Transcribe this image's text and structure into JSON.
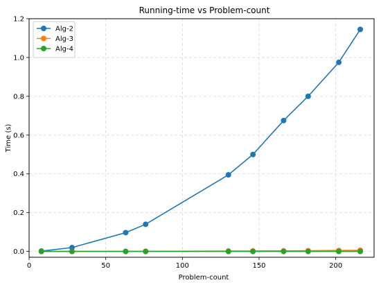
{
  "chart_data": {
    "type": "line",
    "title": "Running-time vs Problem-count",
    "xlabel": "Problem-count",
    "ylabel": "Time (s)",
    "xlim": [
      0,
      225
    ],
    "ylim": [
      -0.03,
      1.2
    ],
    "xticks": [
      0,
      50,
      100,
      150,
      200
    ],
    "yticks": [
      0.0,
      0.2,
      0.4,
      0.6,
      0.8,
      1.0,
      1.2
    ],
    "xtick_labels": [
      "0",
      "50",
      "100",
      "150",
      "200"
    ],
    "ytick_labels": [
      "0.0",
      "0.2",
      "0.4",
      "0.6",
      "0.8",
      "1.0",
      "1.2"
    ],
    "grid": true,
    "legend_position": "top-left",
    "x": [
      8,
      28,
      63,
      76,
      130,
      146,
      166,
      182,
      202,
      216
    ],
    "series": [
      {
        "name": "Alg-2",
        "color": "#1f77b4",
        "values": [
          0.002,
          0.02,
          0.097,
          0.14,
          0.395,
          0.5,
          0.675,
          0.8,
          0.975,
          1.145
        ]
      },
      {
        "name": "Alg-3",
        "color": "#ff7f0e",
        "values": [
          0.0,
          0.0,
          0.0005,
          0.0008,
          0.002,
          0.0025,
          0.003,
          0.004,
          0.005,
          0.006
        ]
      },
      {
        "name": "Alg-4",
        "color": "#2ca02c",
        "values": [
          0.0,
          0.0,
          0.0,
          0.0,
          0.0,
          0.0,
          0.0,
          0.0,
          0.0,
          0.0
        ]
      }
    ]
  }
}
